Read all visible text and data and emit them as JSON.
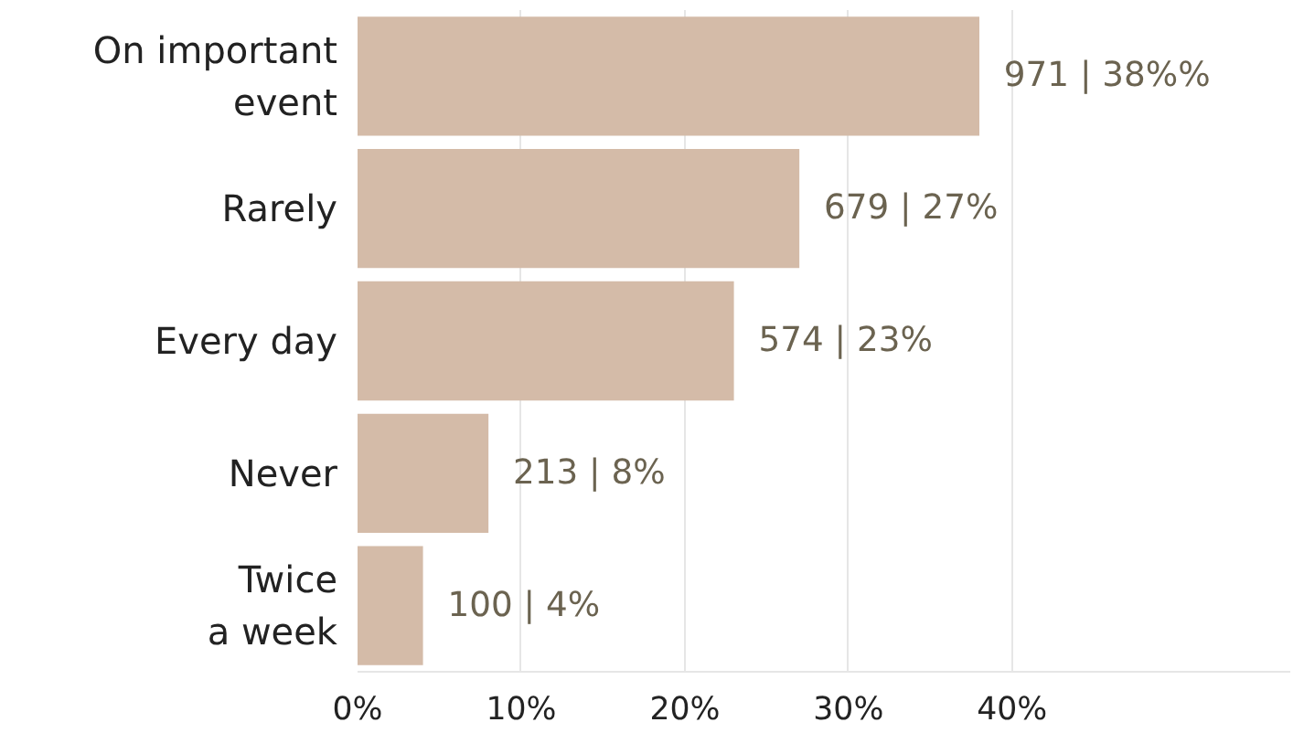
{
  "chart_data": {
    "type": "bar",
    "orientation": "horizontal",
    "categories": [
      "On important event",
      "Rarely",
      "Every day",
      "Never",
      "Twice a week"
    ],
    "values": [
      38,
      27,
      23,
      8,
      4
    ],
    "color": "#d4bba8",
    "value_labels": [
      "971  | 38%%",
      "679 | 27%",
      "574 | 23%",
      "213 | 8%",
      "100 | 4%"
    ],
    "xlim": [
      0,
      57
    ],
    "xticks": [
      {
        "value": 0,
        "label": "0%"
      },
      {
        "value": 10,
        "label": "10%"
      },
      {
        "value": 20,
        "label": "20%"
      },
      {
        "value": 30,
        "label": "30%"
      },
      {
        "value": 40,
        "label": "40%"
      }
    ],
    "grid": "x"
  }
}
